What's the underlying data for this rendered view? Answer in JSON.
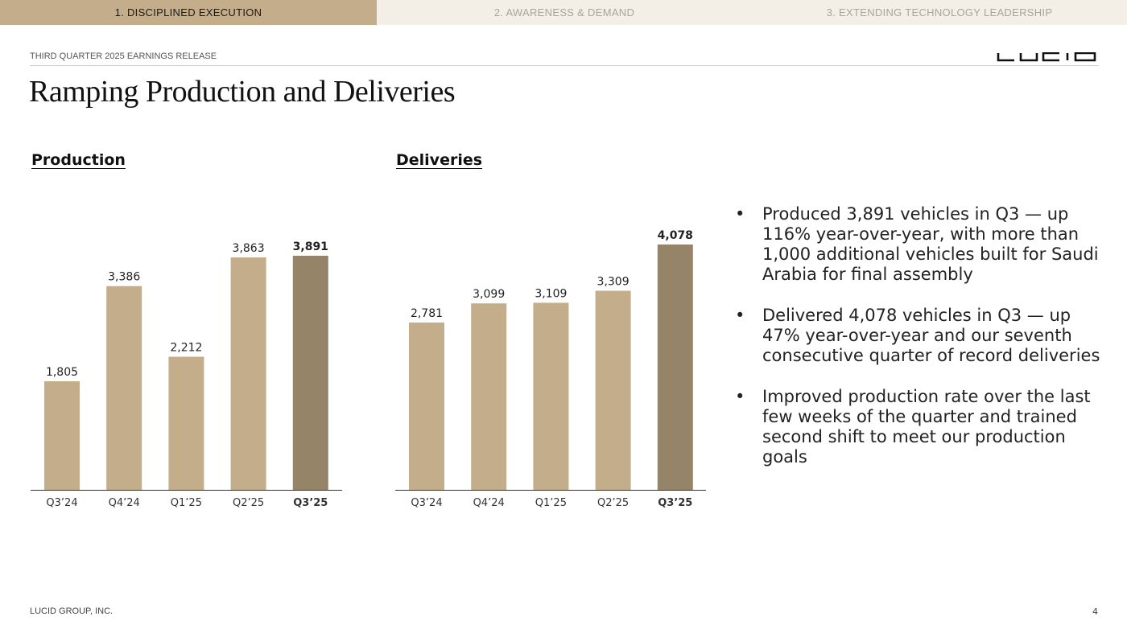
{
  "tabs": [
    {
      "label": "1. DISCIPLINED EXECUTION",
      "active": true
    },
    {
      "label": "2. AWARENESS & DEMAND",
      "active": false
    },
    {
      "label": "3. EXTENDING TECHNOLOGY LEADERSHIP",
      "active": false
    }
  ],
  "header": {
    "subtitle": "THIRD QUARTER 2025 EARNINGS RELEASE",
    "logo": "LUCID",
    "title": "Ramping Production and Deliveries"
  },
  "colors": {
    "bar": "#c4ad8a",
    "highlight_bar": "#958467",
    "tab_active": "#c4ad8a",
    "tab_inactive": "#f3efe7"
  },
  "chart_data": [
    {
      "type": "bar",
      "title": "Production",
      "categories": [
        "Q3’24",
        "Q4’24",
        "Q1’25",
        "Q2’25",
        "Q3’25"
      ],
      "values": [
        1805,
        3386,
        2212,
        3863,
        3891
      ],
      "labels": [
        "1,805",
        "3,386",
        "2,212",
        "3,863",
        "3,891"
      ],
      "highlight": "Q3’25",
      "ylim": [
        0,
        4500
      ]
    },
    {
      "type": "bar",
      "title": "Deliveries",
      "categories": [
        "Q3’24",
        "Q4’24",
        "Q1’25",
        "Q2’25",
        "Q3’25"
      ],
      "values": [
        2781,
        3099,
        3109,
        3309,
        4078
      ],
      "labels": [
        "2,781",
        "3,099",
        "3,109",
        "3,309",
        "4,078"
      ],
      "highlight": "Q3’25",
      "ylim": [
        0,
        4500
      ]
    }
  ],
  "bullets": [
    "Produced 3,891 vehicles in Q3 — up 116% year-over-year, with more than 1,000 additional vehicles built for Saudi Arabia for final assembly",
    "Delivered 4,078 vehicles in Q3 — up 47% year-over-year and our seventh consecutive quarter of record deliveries",
    "Improved production rate over the last few weeks of the quarter and trained second shift to meet our production goals"
  ],
  "footer": {
    "company": "LUCID GROUP, INC.",
    "page": "4"
  }
}
